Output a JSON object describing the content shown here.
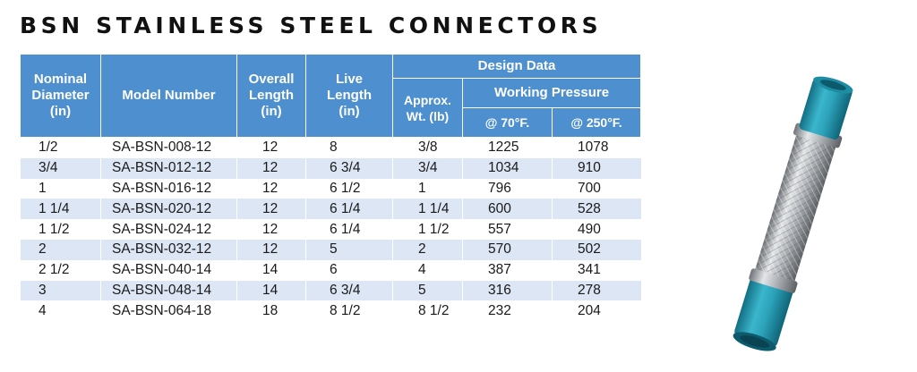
{
  "title": "BSN STAINLESS STEEL CONNECTORS",
  "headers": {
    "nominal_diameter": [
      "Nominal",
      "Diameter",
      "(in)"
    ],
    "model_number": "Model Number",
    "overall_length": [
      "Overall",
      "Length",
      "(in)"
    ],
    "live_length": [
      "Live",
      "Length",
      "(in)"
    ],
    "design_data": "Design Data",
    "approx_wt": [
      "Approx.",
      "Wt. (lb)"
    ],
    "working_pressure": "Working Pressure",
    "at_70f": "@ 70°F.",
    "at_250f": "@ 250°F."
  },
  "rows": [
    {
      "nominal": "1/2",
      "model": "SA-BSN-008-12",
      "overall": "12",
      "live": "8",
      "wt": "3/8",
      "p70": "1225",
      "p250": "1078"
    },
    {
      "nominal": "3/4",
      "model": "SA-BSN-012-12",
      "overall": "12",
      "live": "6 3/4",
      "wt": "3/4",
      "p70": "1034",
      "p250": "910"
    },
    {
      "nominal": "1",
      "model": "SA-BSN-016-12",
      "overall": "12",
      "live": "6 1/2",
      "wt": "1",
      "p70": "796",
      "p250": "700"
    },
    {
      "nominal": "1 1/4",
      "model": "SA-BSN-020-12",
      "overall": "12",
      "live": "6 1/4",
      "wt": "1 1/4",
      "p70": "600",
      "p250": "528"
    },
    {
      "nominal": "1 1/2",
      "model": "SA-BSN-024-12",
      "overall": "12",
      "live": "6 1/4",
      "wt": "1 1/2",
      "p70": "557",
      "p250": "490"
    },
    {
      "nominal": "2",
      "model": "SA-BSN-032-12",
      "overall": "12",
      "live": "5",
      "wt": "2",
      "p70": "570",
      "p250": "502"
    },
    {
      "nominal": "2 1/2",
      "model": "SA-BSN-040-14",
      "overall": "14",
      "live": "6",
      "wt": "4",
      "p70": "387",
      "p250": "341"
    },
    {
      "nominal": "3",
      "model": "SA-BSN-048-14",
      "overall": "14",
      "live": "6 3/4",
      "wt": "5",
      "p70": "316",
      "p250": "278"
    },
    {
      "nominal": "4",
      "model": "SA-BSN-064-18",
      "overall": "18",
      "live": "8 1/2",
      "wt": "8 1/2",
      "p70": "232",
      "p250": "204"
    }
  ],
  "colors": {
    "header_bg": "#4d8fcf",
    "row_stripe": "#dce6f4",
    "fitting_teal": "#2aa1b8",
    "braid_steel": "#b9bcbf"
  },
  "image": {
    "name": "braided-stainless-connector"
  }
}
